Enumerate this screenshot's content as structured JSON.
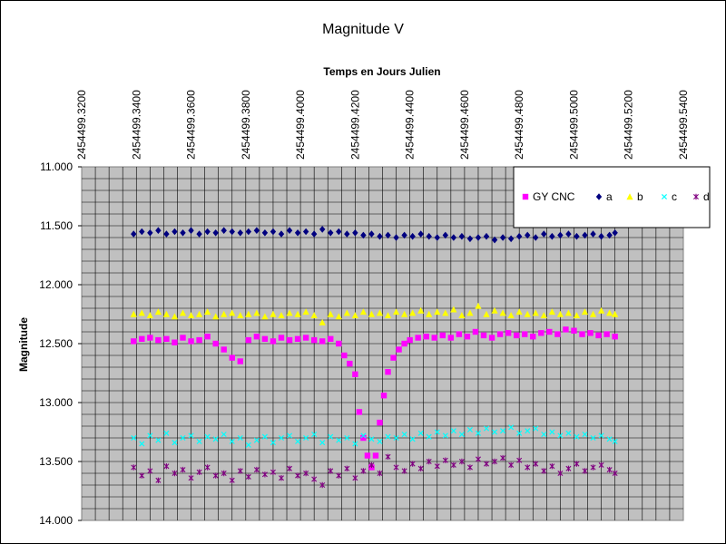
{
  "chart_data": {
    "type": "scatter",
    "title": "Magnitude V",
    "xlabel": "Temps en Jours Julien",
    "ylabel": "Magnitude",
    "x_ticks": [
      "2454499.3200",
      "2454499.3400",
      "2454499.3600",
      "2454499.3800",
      "2454499.4000",
      "2454499.4200",
      "2454499.4400",
      "2454499.4600",
      "2454499.4800",
      "2454499.5000",
      "2454499.5200",
      "2454499.5400"
    ],
    "y_ticks": [
      "11.000",
      "11.500",
      "12.000",
      "12.500",
      "13.000",
      "13.500",
      "14.000"
    ],
    "xlim": [
      2454499.32,
      2454499.54
    ],
    "ylim": [
      11.0,
      14.0
    ],
    "y_reversed": true,
    "x_axis_position": "top",
    "grid": true,
    "legend_position": "top-right",
    "plot_background": "#c0c0c0",
    "series": [
      {
        "name": "GY CNC",
        "color": "#ff00ff",
        "marker": "square",
        "x": [
          2454499.339,
          2454499.342,
          2454499.345,
          2454499.348,
          2454499.351,
          2454499.354,
          2454499.357,
          2454499.36,
          2454499.363,
          2454499.366,
          2454499.369,
          2454499.372,
          2454499.375,
          2454499.378,
          2454499.381,
          2454499.384,
          2454499.387,
          2454499.39,
          2454499.393,
          2454499.396,
          2454499.399,
          2454499.402,
          2454499.405,
          2454499.408,
          2454499.411,
          2454499.414,
          2454499.416,
          2454499.418,
          2454499.42,
          2454499.4215,
          2454499.423,
          2454499.4245,
          2454499.426,
          2454499.4275,
          2454499.429,
          2454499.4305,
          2454499.432,
          2454499.434,
          2454499.436,
          2454499.438,
          2454499.44,
          2454499.443,
          2454499.446,
          2454499.449,
          2454499.452,
          2454499.455,
          2454499.458,
          2454499.461,
          2454499.464,
          2454499.467,
          2454499.47,
          2454499.473,
          2454499.476,
          2454499.479,
          2454499.482,
          2454499.485,
          2454499.488,
          2454499.491,
          2454499.494,
          2454499.497,
          2454499.5,
          2454499.503,
          2454499.506,
          2454499.509,
          2454499.512,
          2454499.515
        ],
        "y": [
          12.48,
          12.46,
          12.45,
          12.47,
          12.46,
          12.49,
          12.45,
          12.48,
          12.47,
          12.44,
          12.5,
          12.55,
          12.62,
          12.65,
          12.47,
          12.44,
          12.46,
          12.48,
          12.45,
          12.47,
          12.46,
          12.45,
          12.47,
          12.48,
          12.46,
          12.5,
          12.6,
          12.67,
          12.76,
          13.08,
          13.3,
          13.45,
          13.55,
          13.45,
          13.17,
          12.94,
          12.74,
          12.62,
          12.55,
          12.5,
          12.47,
          12.45,
          12.44,
          12.45,
          12.43,
          12.45,
          12.42,
          12.44,
          12.4,
          12.43,
          12.45,
          12.42,
          12.41,
          12.43,
          12.42,
          12.44,
          12.41,
          12.4,
          12.42,
          12.38,
          12.39,
          12.42,
          12.41,
          12.43,
          12.42,
          12.44
        ]
      },
      {
        "name": "a",
        "color": "#000080",
        "marker": "diamond",
        "x": [
          2454499.339,
          2454499.342,
          2454499.345,
          2454499.348,
          2454499.351,
          2454499.354,
          2454499.357,
          2454499.36,
          2454499.363,
          2454499.366,
          2454499.369,
          2454499.372,
          2454499.375,
          2454499.378,
          2454499.381,
          2454499.384,
          2454499.387,
          2454499.39,
          2454499.393,
          2454499.396,
          2454499.399,
          2454499.402,
          2454499.405,
          2454499.408,
          2454499.411,
          2454499.414,
          2454499.417,
          2454499.42,
          2454499.423,
          2454499.426,
          2454499.429,
          2454499.432,
          2454499.435,
          2454499.438,
          2454499.441,
          2454499.444,
          2454499.447,
          2454499.45,
          2454499.453,
          2454499.456,
          2454499.459,
          2454499.462,
          2454499.465,
          2454499.468,
          2454499.471,
          2454499.474,
          2454499.477,
          2454499.48,
          2454499.483,
          2454499.486,
          2454499.489,
          2454499.492,
          2454499.495,
          2454499.498,
          2454499.501,
          2454499.504,
          2454499.507,
          2454499.51,
          2454499.513,
          2454499.515
        ],
        "y": [
          11.57,
          11.55,
          11.56,
          11.54,
          11.57,
          11.55,
          11.56,
          11.54,
          11.57,
          11.55,
          11.56,
          11.54,
          11.55,
          11.56,
          11.55,
          11.54,
          11.56,
          11.55,
          11.57,
          11.54,
          11.56,
          11.55,
          11.57,
          11.53,
          11.56,
          11.55,
          11.57,
          11.56,
          11.58,
          11.57,
          11.59,
          11.58,
          11.6,
          11.58,
          11.59,
          11.57,
          11.59,
          11.6,
          11.58,
          11.6,
          11.59,
          11.61,
          11.6,
          11.59,
          11.62,
          11.6,
          11.61,
          11.59,
          11.58,
          11.6,
          11.57,
          11.59,
          11.58,
          11.57,
          11.59,
          11.58,
          11.57,
          11.59,
          11.58,
          11.56
        ]
      },
      {
        "name": "b",
        "color": "#ffff00",
        "marker": "triangle",
        "x": [
          2454499.339,
          2454499.342,
          2454499.345,
          2454499.348,
          2454499.351,
          2454499.354,
          2454499.357,
          2454499.36,
          2454499.363,
          2454499.366,
          2454499.369,
          2454499.372,
          2454499.375,
          2454499.378,
          2454499.381,
          2454499.384,
          2454499.387,
          2454499.39,
          2454499.393,
          2454499.396,
          2454499.399,
          2454499.402,
          2454499.405,
          2454499.408,
          2454499.411,
          2454499.414,
          2454499.417,
          2454499.42,
          2454499.423,
          2454499.426,
          2454499.429,
          2454499.432,
          2454499.435,
          2454499.438,
          2454499.441,
          2454499.444,
          2454499.447,
          2454499.45,
          2454499.453,
          2454499.456,
          2454499.459,
          2454499.462,
          2454499.465,
          2454499.468,
          2454499.471,
          2454499.474,
          2454499.477,
          2454499.48,
          2454499.483,
          2454499.486,
          2454499.489,
          2454499.492,
          2454499.495,
          2454499.498,
          2454499.501,
          2454499.504,
          2454499.507,
          2454499.51,
          2454499.513,
          2454499.515
        ],
        "y": [
          12.25,
          12.24,
          12.26,
          12.23,
          12.25,
          12.27,
          12.24,
          12.26,
          12.25,
          12.23,
          12.27,
          12.25,
          12.24,
          12.26,
          12.25,
          12.24,
          12.27,
          12.25,
          12.26,
          12.24,
          12.25,
          12.23,
          12.26,
          12.32,
          12.25,
          12.27,
          12.24,
          12.26,
          12.23,
          12.25,
          12.24,
          12.26,
          12.23,
          12.25,
          12.24,
          12.22,
          12.25,
          12.23,
          12.24,
          12.21,
          12.26,
          12.24,
          12.18,
          12.25,
          12.22,
          12.24,
          12.26,
          12.23,
          12.25,
          12.24,
          12.26,
          12.23,
          12.25,
          12.24,
          12.26,
          12.23,
          12.25,
          12.22,
          12.24,
          12.25
        ]
      },
      {
        "name": "c",
        "color": "#00ffff",
        "marker": "x",
        "x": [
          2454499.339,
          2454499.342,
          2454499.345,
          2454499.348,
          2454499.351,
          2454499.354,
          2454499.357,
          2454499.36,
          2454499.363,
          2454499.366,
          2454499.369,
          2454499.372,
          2454499.375,
          2454499.378,
          2454499.381,
          2454499.384,
          2454499.387,
          2454499.39,
          2454499.393,
          2454499.396,
          2454499.399,
          2454499.402,
          2454499.405,
          2454499.408,
          2454499.411,
          2454499.414,
          2454499.417,
          2454499.42,
          2454499.423,
          2454499.426,
          2454499.429,
          2454499.432,
          2454499.435,
          2454499.438,
          2454499.441,
          2454499.444,
          2454499.447,
          2454499.45,
          2454499.453,
          2454499.456,
          2454499.459,
          2454499.462,
          2454499.465,
          2454499.468,
          2454499.471,
          2454499.474,
          2454499.477,
          2454499.48,
          2454499.483,
          2454499.486,
          2454499.489,
          2454499.492,
          2454499.495,
          2454499.498,
          2454499.501,
          2454499.504,
          2454499.507,
          2454499.51,
          2454499.513,
          2454499.515
        ],
        "y": [
          13.3,
          13.35,
          13.28,
          13.32,
          13.26,
          13.34,
          13.3,
          13.28,
          13.33,
          13.29,
          13.31,
          13.27,
          13.33,
          13.3,
          13.36,
          13.32,
          13.29,
          13.34,
          13.3,
          13.28,
          13.33,
          13.3,
          13.27,
          13.34,
          13.29,
          13.32,
          13.3,
          13.35,
          13.28,
          13.31,
          13.33,
          13.29,
          13.3,
          13.27,
          13.31,
          13.26,
          13.29,
          13.25,
          13.28,
          13.24,
          13.27,
          13.23,
          13.26,
          13.22,
          13.25,
          13.24,
          13.21,
          13.26,
          13.24,
          13.22,
          13.27,
          13.25,
          13.28,
          13.26,
          13.29,
          13.27,
          13.3,
          13.28,
          13.31,
          13.33
        ]
      },
      {
        "name": "d",
        "color": "#800080",
        "marker": "star",
        "x": [
          2454499.339,
          2454499.342,
          2454499.345,
          2454499.348,
          2454499.351,
          2454499.354,
          2454499.357,
          2454499.36,
          2454499.363,
          2454499.366,
          2454499.369,
          2454499.372,
          2454499.375,
          2454499.378,
          2454499.381,
          2454499.384,
          2454499.387,
          2454499.39,
          2454499.393,
          2454499.396,
          2454499.399,
          2454499.402,
          2454499.405,
          2454499.408,
          2454499.411,
          2454499.414,
          2454499.417,
          2454499.42,
          2454499.423,
          2454499.426,
          2454499.429,
          2454499.432,
          2454499.435,
          2454499.438,
          2454499.441,
          2454499.444,
          2454499.447,
          2454499.45,
          2454499.453,
          2454499.456,
          2454499.459,
          2454499.462,
          2454499.465,
          2454499.468,
          2454499.471,
          2454499.474,
          2454499.477,
          2454499.48,
          2454499.483,
          2454499.486,
          2454499.489,
          2454499.492,
          2454499.495,
          2454499.498,
          2454499.501,
          2454499.504,
          2454499.507,
          2454499.51,
          2454499.513,
          2454499.515
        ],
        "y": [
          13.55,
          13.62,
          13.58,
          13.66,
          13.54,
          13.6,
          13.57,
          13.64,
          13.59,
          13.55,
          13.62,
          13.6,
          13.66,
          13.58,
          13.63,
          13.57,
          13.61,
          13.59,
          13.64,
          13.56,
          13.62,
          13.6,
          13.65,
          13.7,
          13.58,
          13.62,
          13.56,
          13.64,
          13.58,
          13.53,
          13.6,
          13.46,
          13.55,
          13.58,
          13.52,
          13.56,
          13.5,
          13.54,
          13.49,
          13.53,
          13.5,
          13.55,
          13.48,
          13.52,
          13.5,
          13.47,
          13.53,
          13.49,
          13.55,
          13.52,
          13.58,
          13.54,
          13.6,
          13.56,
          13.52,
          13.58,
          13.55,
          13.53,
          13.57,
          13.6
        ]
      }
    ]
  }
}
